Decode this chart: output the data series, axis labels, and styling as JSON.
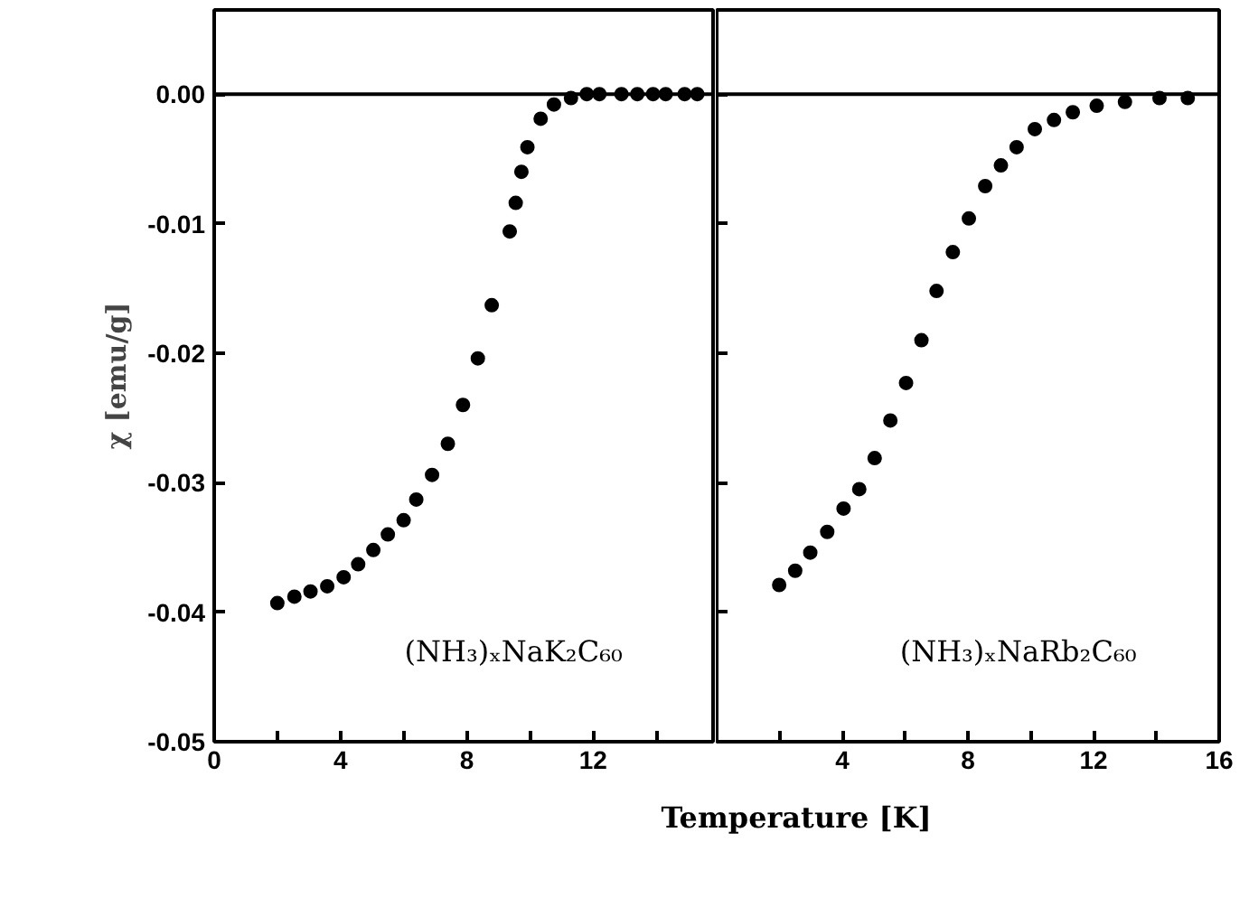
{
  "chart_data": [
    {
      "type": "scatter",
      "ylabel": "χ [emu/g]",
      "xlabel": "Temperature [K]",
      "annotations": [
        "(NH₃)ₓNaK₂C₆₀"
      ],
      "marker": "circle",
      "grid": false,
      "xlim": [
        0,
        15.8
      ],
      "ylim": [
        -0.05,
        0.0065
      ],
      "xticks": [
        0,
        {
          "value": 2,
          "label": null
        },
        4,
        {
          "value": 6,
          "label": null
        },
        8,
        {
          "value": 10,
          "label": null
        },
        12,
        {
          "value": 14,
          "label": null
        }
      ],
      "yticks": [
        {
          "value": 0,
          "label": "0.00"
        },
        -0.01,
        -0.02,
        -0.03,
        -0.04,
        -0.05
      ],
      "ref_lines": [
        {
          "axis": "y",
          "value": 0,
          "color": "#000000"
        }
      ],
      "series": [
        {
          "color": "#000000",
          "x": [
            2.0,
            2.54,
            3.05,
            3.58,
            4.1,
            4.56,
            5.04,
            5.5,
            6.0,
            6.4,
            6.9,
            7.4,
            7.88,
            8.35,
            8.79,
            9.36,
            9.55,
            9.73,
            9.92,
            10.34,
            10.76,
            11.3,
            11.8,
            12.2,
            12.9,
            13.4,
            13.9,
            14.3,
            14.9,
            15.3
          ],
          "values": [
            -0.0393,
            -0.0388,
            -0.0384,
            -0.038,
            -0.0373,
            -0.0363,
            -0.0352,
            -0.034,
            -0.0329,
            -0.0313,
            -0.0294,
            -0.027,
            -0.024,
            -0.0204,
            -0.0163,
            -0.0106,
            -0.0084,
            -0.006,
            -0.0041,
            -0.0019,
            -0.0008,
            -0.0003,
            0,
            0,
            0,
            0,
            0,
            0,
            0,
            0
          ]
        }
      ]
    },
    {
      "type": "scatter",
      "annotations": [
        "(NH₃)ₓNaRb₂C₆₀"
      ],
      "marker": "circle",
      "grid": false,
      "tick_labels": "x",
      "xlim": [
        0,
        16
      ],
      "ylim": [
        -0.05,
        0.0065
      ],
      "xticks": [
        {
          "value": 2,
          "label": null
        },
        4,
        {
          "value": 6,
          "label": null
        },
        8,
        {
          "value": 10,
          "label": null
        },
        12,
        {
          "value": 14,
          "label": null
        },
        16
      ],
      "yticks": [
        0,
        -0.01,
        -0.02,
        -0.03,
        -0.04,
        -0.05
      ],
      "ref_lines": [
        {
          "axis": "y",
          "value": 0,
          "color": "#000000"
        }
      ],
      "series": [
        {
          "color": "#000000",
          "x": [
            1.99,
            2.5,
            2.98,
            3.52,
            4.04,
            4.54,
            5.03,
            5.53,
            6.03,
            6.52,
            7.0,
            7.52,
            8.03,
            8.55,
            9.05,
            9.55,
            10.13,
            10.74,
            11.34,
            12.1,
            13.0,
            14.1,
            15.0
          ],
          "values": [
            -0.0379,
            -0.0368,
            -0.0354,
            -0.0338,
            -0.032,
            -0.0305,
            -0.0281,
            -0.0252,
            -0.0223,
            -0.019,
            -0.0152,
            -0.0122,
            -0.0096,
            -0.0071,
            -0.0055,
            -0.0041,
            -0.0027,
            -0.002,
            -0.0014,
            -0.0009,
            -0.0006,
            -0.0003,
            -0.0003
          ]
        }
      ]
    }
  ]
}
